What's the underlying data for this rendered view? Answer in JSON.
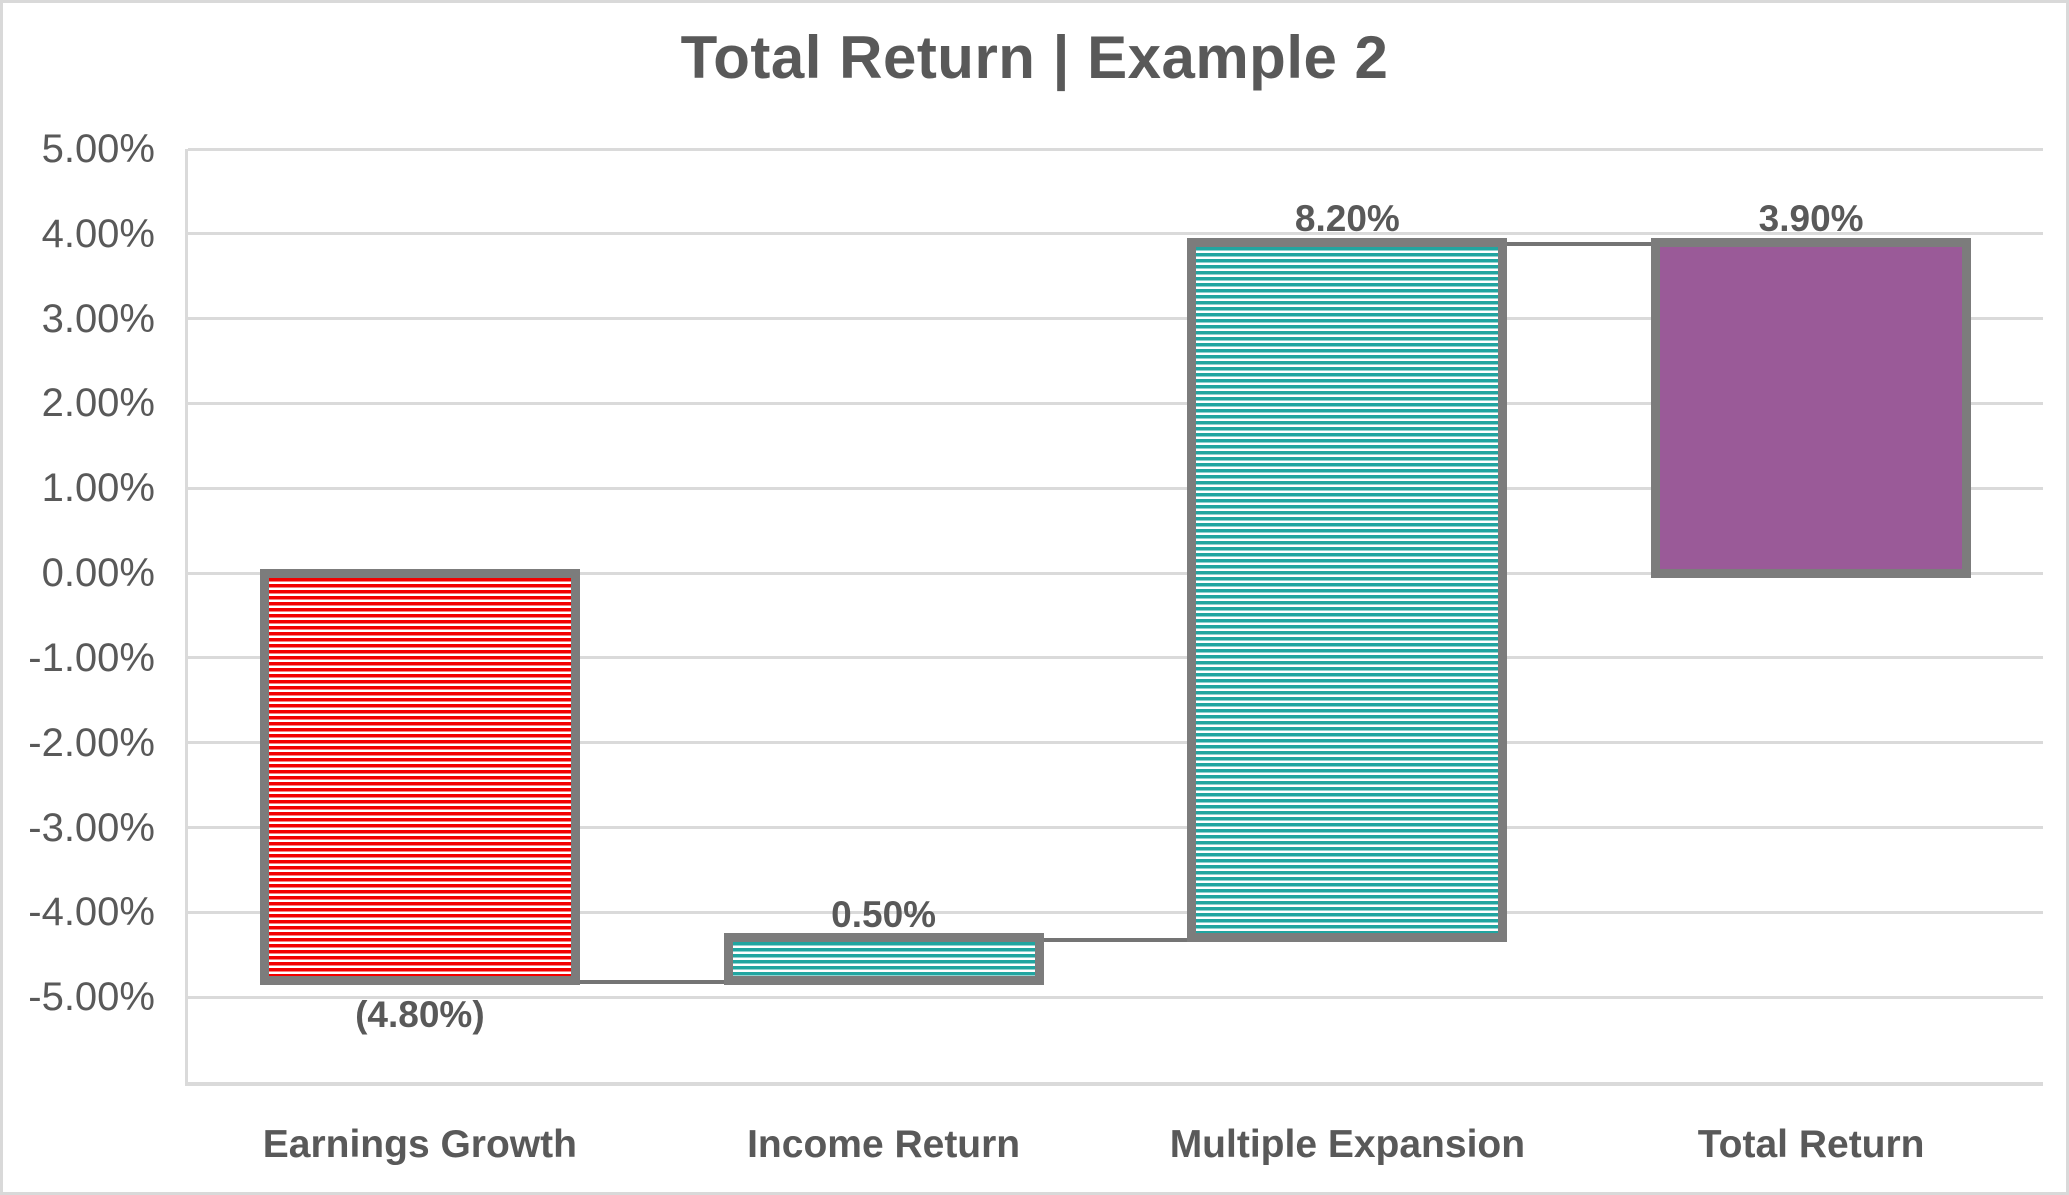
{
  "frame": {
    "background": "#FFFFFF",
    "border_color": "#D9D9D9"
  },
  "chart_data": {
    "type": "bar",
    "subtype": "waterfall",
    "title": "Total Return | Example 2",
    "xlabel": "",
    "ylabel": "",
    "categories": [
      "Earnings Growth",
      "Income Return",
      "Multiple Expansion",
      "Total Return"
    ],
    "series": [
      {
        "name": "Total Return waterfall",
        "values": [
          -4.8,
          0.5,
          8.2,
          3.9
        ]
      }
    ],
    "bars": [
      {
        "category": "Earnings Growth",
        "value": -4.8,
        "start": 0.0,
        "end": -4.8,
        "label": "(4.80%)",
        "label_position": "below",
        "fill_style": "horizontal-stripes",
        "color": "#F20000"
      },
      {
        "category": "Income Return",
        "value": 0.5,
        "start": -4.8,
        "end": -4.3,
        "label": "0.50%",
        "label_position": "above",
        "fill_style": "horizontal-stripes",
        "color": "#21A5A0"
      },
      {
        "category": "Multiple Expansion",
        "value": 8.2,
        "start": -4.3,
        "end": 3.9,
        "label": "8.20%",
        "label_position": "above",
        "fill_style": "horizontal-stripes",
        "color": "#21A5A0"
      },
      {
        "category": "Total Return",
        "value": 3.9,
        "start": 0.0,
        "end": 3.9,
        "label": "3.90%",
        "label_position": "above",
        "fill_style": "solid",
        "color": "#9A5A98"
      }
    ],
    "connectors": [
      {
        "at_value": -4.8,
        "from_bar": 0,
        "to_bar": 1
      },
      {
        "at_value": -4.3,
        "from_bar": 1,
        "to_bar": 2
      },
      {
        "at_value": 3.9,
        "from_bar": 2,
        "to_bar": 3
      }
    ],
    "y_axis": {
      "min": -6,
      "max": 5,
      "tick_step": 1,
      "tick_labels": [
        "5.00%",
        "4.00%",
        "3.00%",
        "2.00%",
        "1.00%",
        "0.00%",
        "-1.00%",
        "-2.00%",
        "-3.00%",
        "-4.00%",
        "-5.00%"
      ]
    },
    "ylim": [
      -6,
      5
    ],
    "grid": true,
    "legend": false,
    "colors": {
      "text": "#595959",
      "gridline": "#DADADA",
      "bar_border": "#7C7C7C",
      "connector": "#747474",
      "stripe_background": "#FFFFFF"
    }
  }
}
